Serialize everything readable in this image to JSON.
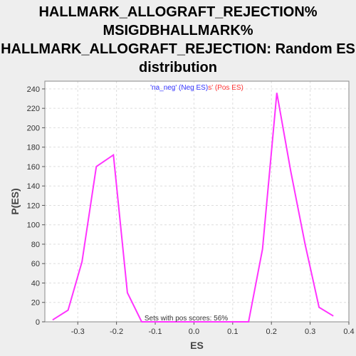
{
  "chart_data": {
    "type": "line",
    "title_lines": [
      "HALLMARK_ALLOGRAFT_REJECTION%",
      "MSIGDBHALLMARK%",
      "HALLMARK_ALLOGRAFT_REJECTION: Random ES",
      "distribution"
    ],
    "xlabel": "ES",
    "ylabel": "P(ES)",
    "xlim": [
      -0.385,
      0.4
    ],
    "ylim": [
      0,
      248
    ],
    "x_ticks": [
      -0.3,
      -0.2,
      -0.1,
      0.0,
      0.1,
      0.2,
      0.3,
      0.4
    ],
    "x_tick_labels": [
      "-0.3",
      "-0.2",
      "-0.1",
      "0.0",
      "0.1",
      "0.2",
      "0.3",
      "0.4"
    ],
    "y_ticks": [
      0,
      20,
      40,
      60,
      80,
      100,
      120,
      140,
      160,
      180,
      200,
      220,
      240
    ],
    "y_tick_labels": [
      "0",
      "20",
      "40",
      "60",
      "80",
      "100",
      "120",
      "140",
      "160",
      "180",
      "200",
      "220",
      "240"
    ],
    "grid": true,
    "legend": {
      "placement": "top-center",
      "neg_text": "'na_neg' (Neg ES)",
      "pos_text": "s' (Pos ES)",
      "neg_color": "#3333ff",
      "pos_color": "#ff3333"
    },
    "annotation": "Sets with pos scores: 56%",
    "series": [
      {
        "color": "#ff33ff",
        "x": [
          -0.365,
          -0.325,
          -0.289,
          -0.252,
          -0.208,
          -0.172,
          -0.135,
          -0.099,
          -0.062,
          -0.026,
          0.011,
          0.047,
          0.084,
          0.12,
          0.141,
          0.177,
          0.214,
          0.25,
          0.287,
          0.323,
          0.36
        ],
        "y": [
          2,
          12,
          62,
          160,
          172,
          30,
          0,
          0,
          0,
          0,
          0,
          0,
          0,
          0,
          0,
          75,
          236,
          155,
          80,
          15,
          6
        ]
      }
    ]
  }
}
